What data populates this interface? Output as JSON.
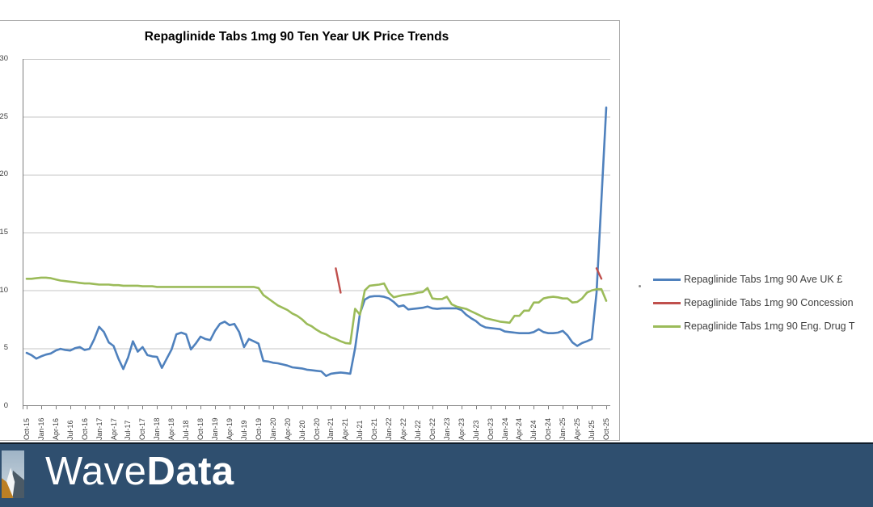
{
  "chart_data": {
    "type": "line",
    "title": "Repaglinide Tabs 1mg 90 Ten Year UK Price Trends",
    "x_frequency": "monthly",
    "x_start": "Oct-15",
    "x_end": "Oct-25",
    "x_tick_labels": [
      "Oct-15",
      "Jan-16",
      "Apr-16",
      "Jul-16",
      "Oct-16",
      "Jan-17",
      "Apr-17",
      "Jul-17",
      "Oct-17",
      "Jan-18",
      "Apr-18",
      "Jul-18",
      "Oct-18",
      "Jan-19",
      "Apr-19",
      "Jul-19",
      "Oct-19",
      "Jan-20",
      "Apr-20",
      "Jul-20",
      "Oct-20",
      "Jan-21",
      "Apr-21",
      "Jul-21",
      "Oct-21",
      "Jan-22",
      "Apr-22",
      "Jul-22",
      "Oct-22",
      "Jan-23",
      "Apr-23",
      "Jul-23",
      "Oct-23",
      "Jan-24",
      "Apr-24",
      "Jul-24",
      "Oct-24",
      "Jan-25",
      "Apr-25",
      "Jul-25",
      "Oct-25"
    ],
    "y_ticks": [
      0,
      5,
      10,
      15,
      20,
      25,
      30
    ],
    "ylim": [
      0,
      30
    ],
    "grid": true,
    "legend_position": "right-outside",
    "series": [
      {
        "name": "Repaglinide Tabs 1mg 90 Ave UK £",
        "color": "#4F81BD",
        "values": [
          4.6,
          4.4,
          4.1,
          4.3,
          4.45,
          4.55,
          4.8,
          4.95,
          4.85,
          4.8,
          5.0,
          5.1,
          4.85,
          4.95,
          5.8,
          6.85,
          6.4,
          5.5,
          5.2,
          4.1,
          3.2,
          4.2,
          5.6,
          4.7,
          5.1,
          4.4,
          4.3,
          4.25,
          3.3,
          4.1,
          4.9,
          6.2,
          6.35,
          6.2,
          4.9,
          5.4,
          6.0,
          5.8,
          5.7,
          6.5,
          7.1,
          7.3,
          7.0,
          7.1,
          6.4,
          5.1,
          5.8,
          5.6,
          5.4,
          3.9,
          3.85,
          3.75,
          3.7,
          3.6,
          3.5,
          3.35,
          3.3,
          3.25,
          3.15,
          3.1,
          3.05,
          3.0,
          2.6,
          2.8,
          2.85,
          2.9,
          2.85,
          2.8,
          5.0,
          8.0,
          9.2,
          9.45,
          9.5,
          9.5,
          9.45,
          9.3,
          9.0,
          8.6,
          8.7,
          8.35,
          8.4,
          8.45,
          8.5,
          8.6,
          8.45,
          8.4,
          8.45,
          8.45,
          8.45,
          8.45,
          8.3,
          7.9,
          7.6,
          7.35,
          7.0,
          6.8,
          6.75,
          6.7,
          6.65,
          6.45,
          6.4,
          6.35,
          6.3,
          6.3,
          6.3,
          6.4,
          6.65,
          6.4,
          6.3,
          6.3,
          6.35,
          6.5,
          6.1,
          5.5,
          5.2,
          5.45,
          5.6,
          5.8,
          9.8,
          17.8,
          25.8
        ]
      },
      {
        "name": "Repaglinide Tabs 1mg 90 Concession",
        "color": "#C0504D",
        "segments": [
          [
            [
              64,
              11.9
            ],
            [
              65,
              9.8
            ]
          ],
          [
            [
              118,
              11.9
            ],
            [
              119,
              11.0
            ]
          ]
        ]
      },
      {
        "name": "Repaglinide Tabs 1mg 90 Eng. Drug T",
        "color": "#9BBB59",
        "values": [
          11.0,
          11.0,
          11.05,
          11.1,
          11.1,
          11.05,
          10.95,
          10.85,
          10.8,
          10.75,
          10.7,
          10.65,
          10.6,
          10.6,
          10.55,
          10.5,
          10.5,
          10.5,
          10.45,
          10.45,
          10.4,
          10.4,
          10.4,
          10.4,
          10.35,
          10.35,
          10.35,
          10.3,
          10.3,
          10.3,
          10.3,
          10.3,
          10.3,
          10.3,
          10.3,
          10.3,
          10.3,
          10.3,
          10.3,
          10.3,
          10.3,
          10.3,
          10.3,
          10.3,
          10.3,
          10.3,
          10.3,
          10.3,
          10.2,
          9.6,
          9.3,
          9.0,
          8.7,
          8.5,
          8.3,
          8.0,
          7.8,
          7.5,
          7.1,
          6.9,
          6.6,
          6.35,
          6.2,
          5.95,
          5.8,
          5.6,
          5.45,
          5.4,
          8.4,
          7.9,
          10.0,
          10.4,
          10.45,
          10.5,
          10.6,
          9.8,
          9.4,
          9.5,
          9.6,
          9.65,
          9.7,
          9.8,
          9.85,
          10.2,
          9.3,
          9.25,
          9.25,
          9.45,
          8.8,
          8.6,
          8.5,
          8.4,
          8.2,
          8.0,
          7.8,
          7.6,
          7.5,
          7.4,
          7.3,
          7.25,
          7.2,
          7.8,
          7.8,
          8.25,
          8.25,
          8.95,
          8.95,
          9.3,
          9.4,
          9.45,
          9.4,
          9.3,
          9.3,
          8.95,
          9.0,
          9.3,
          9.8,
          10.0,
          10.1,
          10.1,
          9.1
        ]
      }
    ]
  },
  "legend": {
    "items": [
      {
        "label": "Repaglinide Tabs 1mg 90 Ave UK £",
        "color": "#4F81BD"
      },
      {
        "label": "Repaglinide Tabs 1mg 90 Concession",
        "color": "#C0504D"
      },
      {
        "label": "Repaglinide Tabs 1mg 90 Eng. Drug T",
        "color": "#9BBB59"
      }
    ]
  },
  "footer": {
    "brand_light": "Wave",
    "brand_bold": "Data",
    "bar_color": "#2f4f6f"
  }
}
